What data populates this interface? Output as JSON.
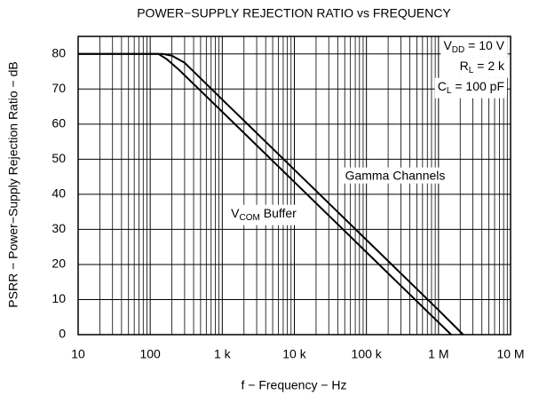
{
  "chart_data": {
    "type": "line",
    "title": "POWER−SUPPLY REJECTION RATIO vs FREQUENCY",
    "x_label": "f − Frequency − Hz",
    "y_label": "PSRR − Power−Supply Rejection Ratio − dB",
    "xscale": "log",
    "xlim": [
      10,
      10000000
    ],
    "ylim": [
      0,
      85
    ],
    "xticks": [
      10,
      100,
      {
        "value": 1000,
        "label": "1 k"
      },
      {
        "value": 10000,
        "label": "10 k"
      },
      {
        "value": 100000,
        "label": "100 k"
      },
      {
        "value": 1000000,
        "label": "1 M"
      },
      {
        "value": 10000000,
        "label": "10 M"
      }
    ],
    "xminor_ticks": [
      20,
      30,
      40,
      50,
      60,
      70,
      80,
      90,
      200,
      300,
      400,
      500,
      600,
      700,
      800,
      900,
      2000,
      3000,
      4000,
      5000,
      6000,
      7000,
      8000,
      9000,
      20000,
      30000,
      40000,
      50000,
      60000,
      70000,
      80000,
      90000,
      200000,
      300000,
      400000,
      500000,
      600000,
      700000,
      800000,
      900000,
      2000000,
      3000000,
      4000000,
      5000000,
      6000000,
      7000000,
      8000000,
      9000000
    ],
    "yticks": [
      0,
      10,
      20,
      30,
      40,
      50,
      60,
      70,
      80
    ],
    "grid": true,
    "series": [
      {
        "name": "Gamma Channels",
        "color": "#000000",
        "x": [
          10,
          100,
          150,
          200,
          300,
          1000,
          10000,
          100000,
          1000000,
          2200000
        ],
        "values": [
          80,
          80,
          80,
          79.5,
          77.5,
          67,
          47,
          27,
          7,
          0
        ]
      },
      {
        "name": "V_COM Buffer",
        "label_parts": [
          "V",
          "COM",
          " Buffer"
        ],
        "color": "#000000",
        "x": [
          10,
          100,
          130,
          170,
          250,
          1000,
          10000,
          100000,
          1000000,
          1500000
        ],
        "values": [
          80,
          80,
          80,
          78.5,
          75.5,
          63.5,
          43.5,
          23.5,
          3.5,
          0
        ]
      }
    ],
    "annotations": [
      [
        "V",
        "DD",
        " = 10 V"
      ],
      [
        "R",
        "L",
        " = 2 k"
      ],
      [
        "C",
        "L",
        " = 100 pF"
      ]
    ]
  }
}
